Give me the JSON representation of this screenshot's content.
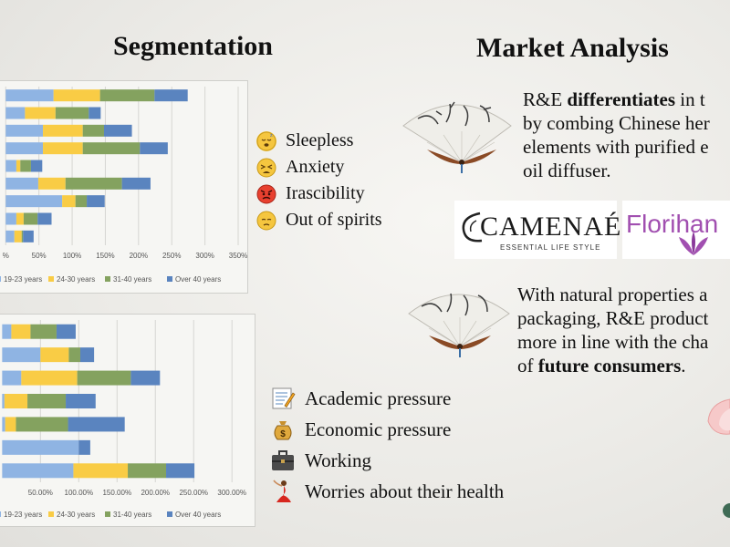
{
  "titles": {
    "segmentation": "Segmentation",
    "market": "Market Analysis"
  },
  "chart_data": [
    {
      "type": "bar",
      "orientation": "horizontal",
      "stacked": true,
      "x_ticks": [
        "%",
        "50%",
        "100%",
        "150%",
        "200%",
        "250%",
        "300%",
        "350%"
      ],
      "xlim": [
        -0.1,
        3.5
      ],
      "legend_position": "bottom",
      "series": [
        {
          "name": "19-23 years",
          "color": "#8fb4e3",
          "values": [
            0.72,
            0.29,
            0.56,
            0.56,
            0.16,
            0.49,
            0.85,
            0.16,
            0.13
          ]
        },
        {
          "name": "24-30 years",
          "color": "#f9cc45",
          "values": [
            0.7,
            0.46,
            0.6,
            0.6,
            0.06,
            0.41,
            0.2,
            0.11,
            0.11
          ]
        },
        {
          "name": "31-40 years",
          "color": "#84a25f",
          "values": [
            0.82,
            0.5,
            0.32,
            0.86,
            0.16,
            0.85,
            0.17,
            0.21,
            0.02
          ]
        },
        {
          "name": "Over 40 years",
          "color": "#5a84bf",
          "values": [
            0.5,
            0.18,
            0.42,
            0.42,
            0.17,
            0.43,
            0.27,
            0.21,
            0.16
          ]
        }
      ]
    },
    {
      "type": "bar",
      "orientation": "horizontal",
      "stacked": true,
      "x_ticks": [
        "50.00%",
        "100.00%",
        "150.00%",
        "200.00%",
        "250.00%",
        "300.00%"
      ],
      "xlim": [
        -0.04,
        3.2
      ],
      "legend_position": "bottom",
      "series": [
        {
          "name": "19-23 years",
          "color": "#8fb4e3",
          "values": [
            0.12,
            0.5,
            0.25,
            0.03,
            0.04,
            1.0,
            0.93
          ]
        },
        {
          "name": "24-30 years",
          "color": "#f9cc45",
          "values": [
            0.25,
            0.37,
            0.73,
            0.3,
            0.14,
            0.0,
            0.71
          ]
        },
        {
          "name": "31-40 years",
          "color": "#84a25f",
          "values": [
            0.34,
            0.15,
            0.7,
            0.5,
            0.68,
            0.0,
            0.5
          ]
        },
        {
          "name": "Over 40 years",
          "color": "#5a84bf",
          "values": [
            0.25,
            0.18,
            0.38,
            0.39,
            0.74,
            0.15,
            0.37
          ]
        }
      ]
    }
  ],
  "symptoms": [
    {
      "icon": "sleepy-face-icon",
      "label": "Sleepless"
    },
    {
      "icon": "tired-face-icon",
      "label": "Anxiety"
    },
    {
      "icon": "angry-face-icon",
      "label": "Irascibility"
    },
    {
      "icon": "sad-face-icon",
      "label": "Out of spirits"
    }
  ],
  "pressures": [
    {
      "icon": "memo-icon",
      "label": "Academic pressure"
    },
    {
      "icon": "money-bag-icon",
      "label": "Economic pressure"
    },
    {
      "icon": "briefcase-icon",
      "label": "Working"
    },
    {
      "icon": "dancer-icon",
      "label": "Worries about their health"
    }
  ],
  "market": {
    "para1": {
      "line1_a": "R&E ",
      "line1_b": "differentiates",
      "line1_c": " in t",
      "line2": "by combing Chinese her",
      "line3": "elements with purified e",
      "line4": "oil diffuser."
    },
    "logos": {
      "camenae_name": "CAMENAÉ",
      "camenae_tagline": "ESSENTIAL LIFE STYLE",
      "florihana": "Florihan"
    },
    "para2": {
      "line1": "With natural properties a",
      "line2": "packaging, R&E product",
      "line3": "more in line with the cha",
      "line4_a": "of ",
      "line4_b": "future consumers",
      "line4_c": "."
    }
  },
  "colors": {
    "light_blue": "#8fb4e3",
    "yellow": "#f9cc45",
    "green": "#84a25f",
    "blue": "#5a84bf",
    "florihana_purple": "#a14fb0"
  }
}
